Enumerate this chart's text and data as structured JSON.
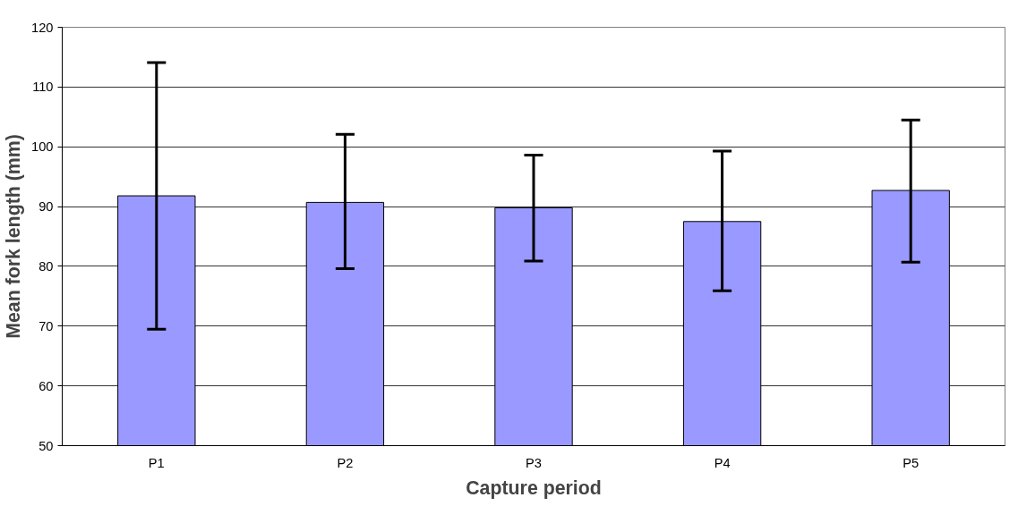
{
  "chart_data": {
    "type": "bar",
    "xlabel": "Capture period",
    "ylabel": "Mean fork length (mm)",
    "categories": [
      "P1",
      "P2",
      "P3",
      "P4",
      "P5"
    ],
    "values": [
      91.8,
      90.7,
      89.8,
      87.5,
      92.7
    ],
    "errors": [
      [
        69.5,
        114.1
      ],
      [
        79.6,
        102.1
      ],
      [
        80.9,
        98.6
      ],
      [
        75.9,
        99.3
      ],
      [
        80.7,
        104.5
      ]
    ],
    "color": "#9999ff",
    "ylim": [
      50,
      120
    ],
    "yticks": [
      50,
      60,
      70,
      80,
      90,
      100,
      110,
      120
    ],
    "grid": "y"
  }
}
